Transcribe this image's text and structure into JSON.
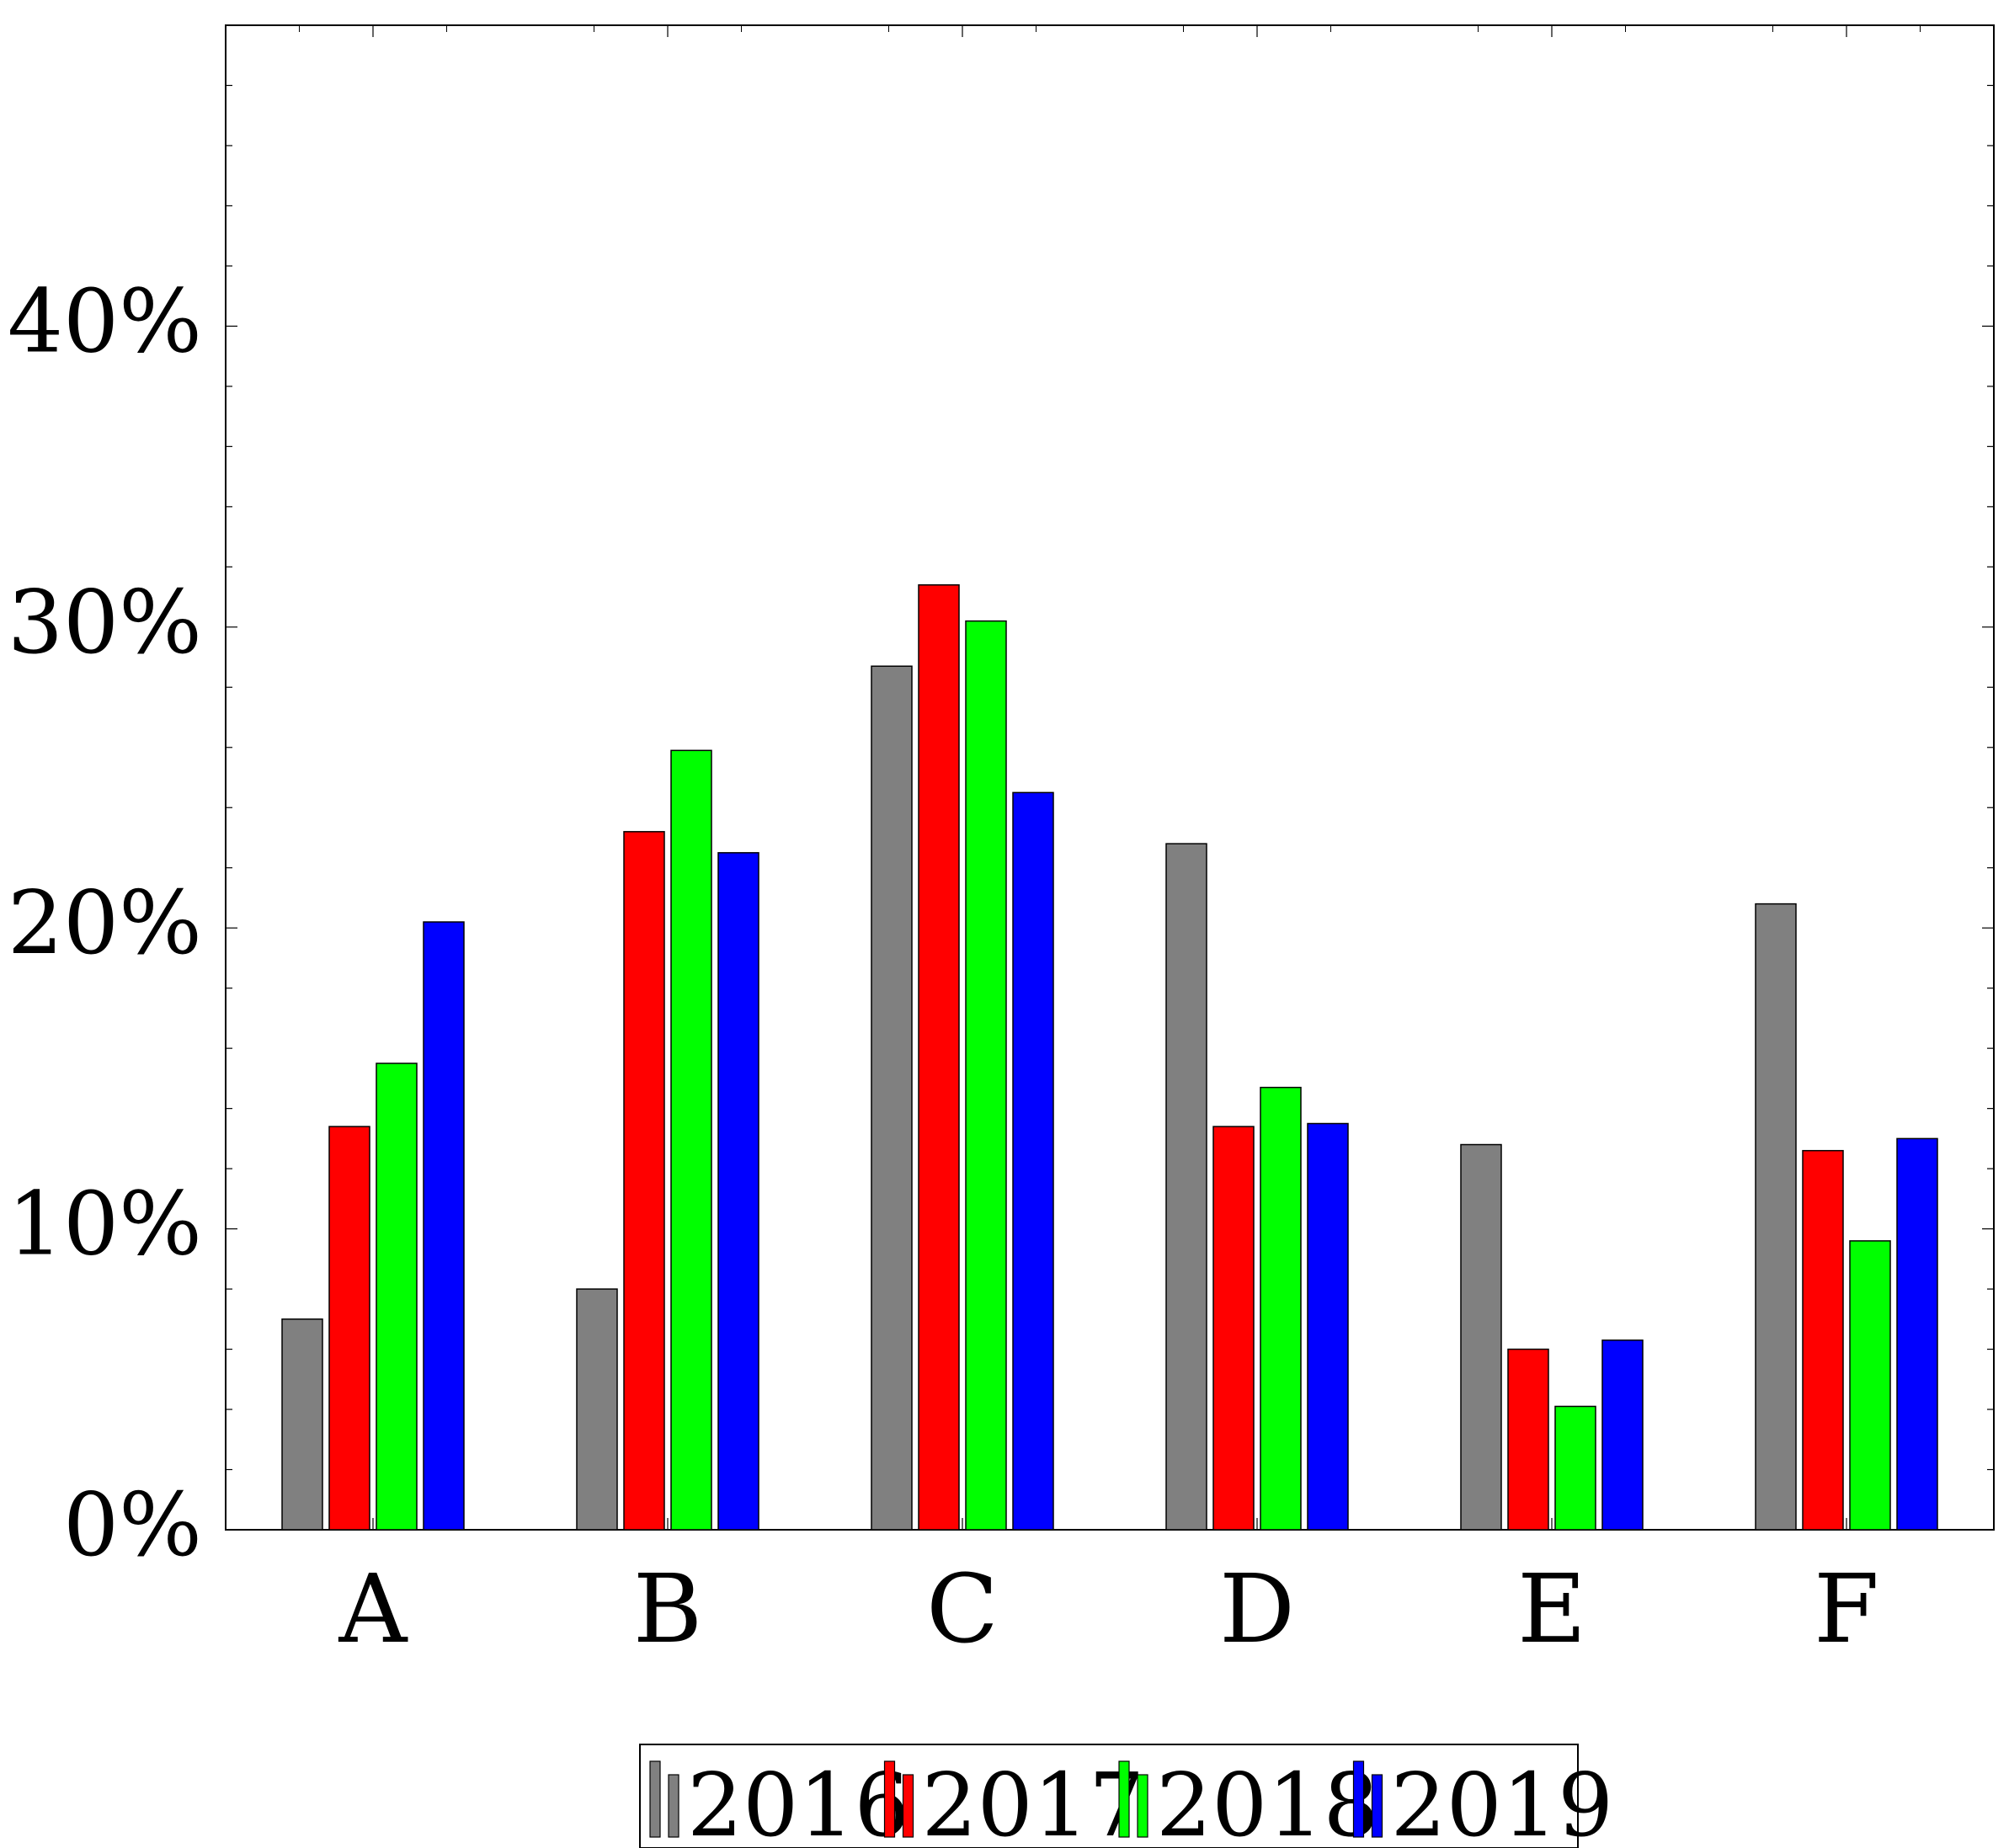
{
  "chart_data": {
    "type": "bar",
    "categories": [
      "A",
      "B",
      "C",
      "D",
      "E",
      "F"
    ],
    "series": [
      {
        "name": "2016",
        "color": "#808080",
        "values": [
          7.0,
          8.0,
          28.7,
          22.8,
          12.8,
          20.8
        ]
      },
      {
        "name": "2017",
        "color": "#ff0000",
        "values": [
          13.4,
          23.2,
          31.4,
          13.4,
          6.0,
          12.6
        ]
      },
      {
        "name": "2018",
        "color": "#00ff00",
        "values": [
          15.5,
          25.9,
          30.2,
          14.7,
          4.1,
          9.6
        ]
      },
      {
        "name": "2019",
        "color": "#0000ff",
        "values": [
          20.2,
          22.5,
          24.5,
          13.5,
          6.3,
          13.0
        ]
      }
    ],
    "ylim": [
      0,
      50
    ],
    "yticks": [
      0,
      10,
      20,
      30,
      40
    ],
    "ytick_labels": [
      "0%",
      "10%",
      "20%",
      "30%",
      "40%"
    ],
    "grid": false,
    "legend_position": "bottom",
    "title": "",
    "xlabel": "",
    "ylabel": ""
  }
}
